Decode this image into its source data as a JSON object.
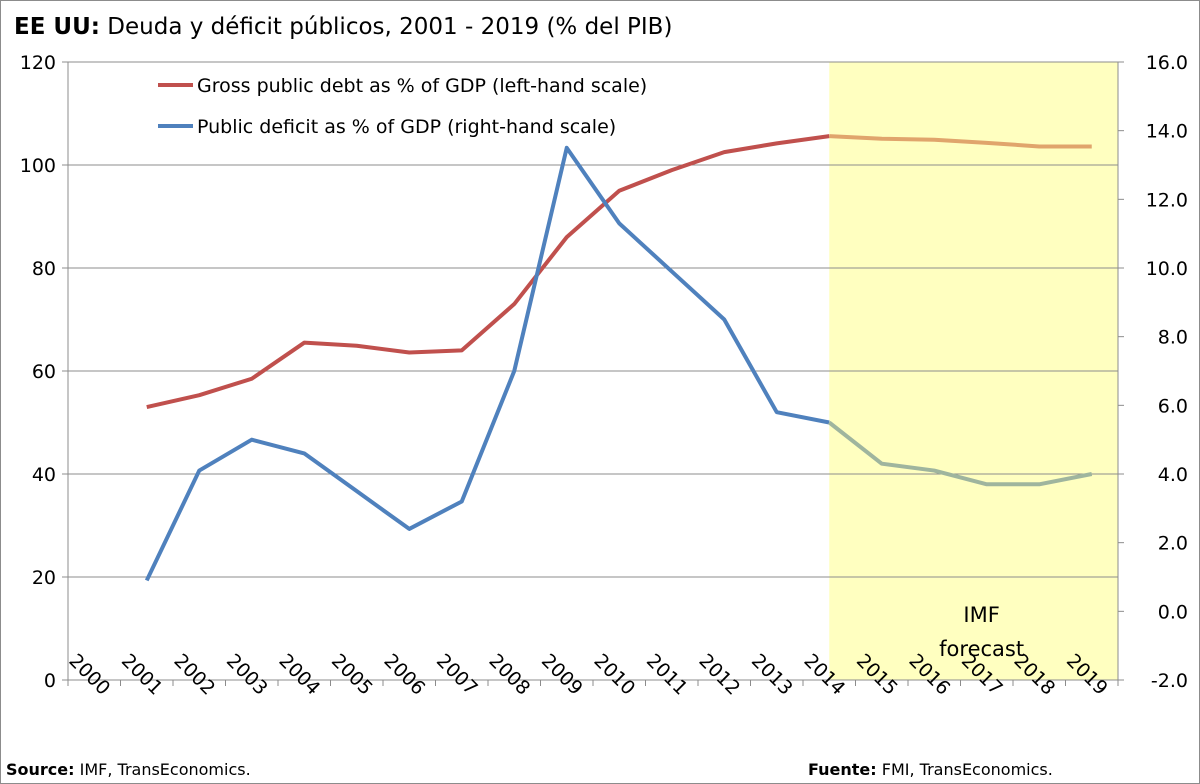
{
  "title": {
    "bold": "EE UU:",
    "rest": " Deuda y déficit públicos, 2001 - 2019 (% del PIB)"
  },
  "colors": {
    "debt": "#c0504d",
    "deficit": "#4f81bd",
    "debt_forecast": "#e0a56c",
    "deficit_forecast": "#9fb59e",
    "forecast_band": "#ffffc0"
  },
  "footer": {
    "source_label": "Source:",
    "source_text": " IMF, TransEconomics.",
    "fuente_label": "Fuente:",
    "fuente_text": " FMI, TransEconomics."
  },
  "chart_data": {
    "type": "line",
    "categories": [
      "2000",
      "2001",
      "2002",
      "2003",
      "2004",
      "2005",
      "2006",
      "2007",
      "2008",
      "2009",
      "2010",
      "2011",
      "2012",
      "2013",
      "2014",
      "2015",
      "2016",
      "2017",
      "2018",
      "2019"
    ],
    "forecast": {
      "label_line1": "IMF",
      "label_line2": "forecast",
      "from": "2014",
      "to": "2019"
    },
    "left_axis": {
      "min": 0,
      "max": 120,
      "ticks": [
        "0",
        "20",
        "40",
        "60",
        "80",
        "100",
        "120"
      ]
    },
    "right_axis": {
      "min": -2.0,
      "max": 16.0,
      "ticks": [
        "-2.0",
        "0.0",
        "2.0",
        "4.0",
        "6.0",
        "8.0",
        "10.0",
        "12.0",
        "14.0",
        "16.0"
      ]
    },
    "grid": true,
    "legend_position": "top-left",
    "series": [
      {
        "name": "Gross public debt as % of GDP (left-hand scale)",
        "axis": "left",
        "x": [
          "2001",
          "2002",
          "2003",
          "2004",
          "2005",
          "2006",
          "2007",
          "2008",
          "2009",
          "2010",
          "2011",
          "2012",
          "2013",
          "2014",
          "2015",
          "2016",
          "2017",
          "2018",
          "2019"
        ],
        "values": [
          53.0,
          55.3,
          58.5,
          65.5,
          64.9,
          63.6,
          64.0,
          73.0,
          86.0,
          95.0,
          99.0,
          102.5,
          104.2,
          105.6,
          105.1,
          104.9,
          104.3,
          103.6,
          103.6
        ]
      },
      {
        "name": "Public deficit as % of GDP (right-hand scale)",
        "axis": "right",
        "x": [
          "2001",
          "2002",
          "2003",
          "2004",
          "2005",
          "2006",
          "2007",
          "2008",
          "2009",
          "2010",
          "2011",
          "2012",
          "2013",
          "2014",
          "2015",
          "2016",
          "2017",
          "2018",
          "2019"
        ],
        "values": [
          0.9,
          4.1,
          5.0,
          4.6,
          3.5,
          2.4,
          3.2,
          7.0,
          13.5,
          11.3,
          9.9,
          8.5,
          5.8,
          5.5,
          4.3,
          4.1,
          3.7,
          3.7,
          4.0
        ]
      }
    ]
  }
}
